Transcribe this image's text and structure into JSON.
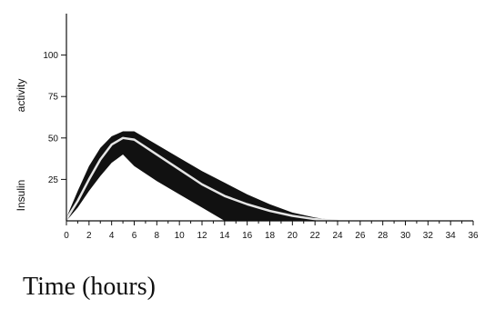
{
  "chart_data": {
    "type": "area",
    "title": "",
    "xlabel": "Time (hours)",
    "ylabel_parts": [
      "Insulin",
      "activity"
    ],
    "x_ticks": [
      0,
      2,
      4,
      6,
      8,
      10,
      12,
      14,
      16,
      18,
      20,
      22,
      24,
      26,
      28,
      30,
      32,
      34,
      36
    ],
    "y_ticks": [
      25,
      50,
      75,
      100
    ],
    "xlim": [
      0,
      36
    ],
    "ylim": [
      0,
      125
    ],
    "grid": false,
    "legend": "none",
    "series": [
      {
        "kind": "band",
        "x": [
          0,
          1,
          2,
          3,
          4,
          5,
          6,
          8,
          10,
          12,
          14,
          16,
          18,
          20,
          22,
          24
        ],
        "upper": [
          2,
          18,
          33,
          44,
          51,
          54,
          54,
          46,
          38,
          30,
          23,
          16,
          10,
          5,
          2,
          0
        ],
        "lower": [
          0,
          8,
          18,
          27,
          35,
          40,
          33,
          24,
          16,
          8,
          0,
          0,
          0,
          0,
          0,
          0
        ],
        "color": "#111111"
      },
      {
        "kind": "line",
        "x": [
          0,
          1,
          2,
          3,
          4,
          5,
          6,
          8,
          10,
          12,
          14,
          16,
          18,
          20,
          22,
          24
        ],
        "values": [
          1,
          12,
          25,
          37,
          46,
          50,
          49,
          40,
          31,
          22,
          15,
          10,
          6,
          3,
          1,
          0
        ],
        "color": "#e6e6e6"
      }
    ]
  }
}
